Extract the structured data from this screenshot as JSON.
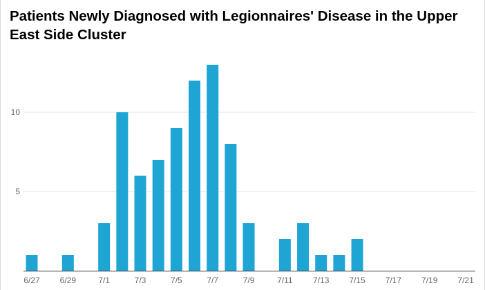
{
  "chart_data": {
    "type": "bar",
    "title": "Patients Newly Diagnosed with Legionnaires' Disease in the Upper East Side Cluster",
    "xlabel": "",
    "ylabel": "",
    "categories": [
      "6/27",
      "6/28",
      "6/29",
      "6/30",
      "7/1",
      "7/2",
      "7/3",
      "7/4",
      "7/5",
      "7/6",
      "7/7",
      "7/8",
      "7/9",
      "7/10",
      "7/11",
      "7/12",
      "7/13",
      "7/14",
      "7/15",
      "7/16",
      "7/17",
      "7/18",
      "7/19",
      "7/20",
      "7/21"
    ],
    "x_tick_labels": [
      "6/27",
      "6/29",
      "7/1",
      "7/3",
      "7/5",
      "7/7",
      "7/9",
      "7/11",
      "7/13",
      "7/15",
      "7/17",
      "7/19",
      "7/21"
    ],
    "values": [
      1,
      0,
      1,
      0,
      3,
      10,
      6,
      7,
      9,
      12,
      13,
      8,
      3,
      0,
      2,
      3,
      1,
      1,
      2,
      0,
      0,
      0,
      0,
      0,
      0
    ],
    "ylim": [
      0,
      14
    ],
    "y_ticks": [
      5,
      10
    ],
    "grid": true,
    "bar_color": "#1fa5d4"
  }
}
